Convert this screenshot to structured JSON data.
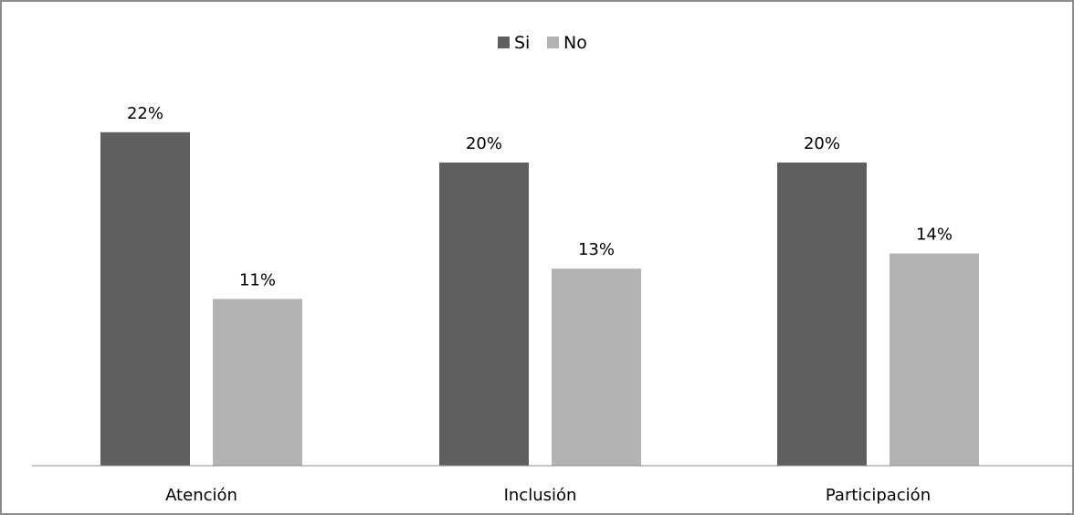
{
  "chart_data": {
    "type": "bar",
    "title": "",
    "xlabel": "",
    "ylabel": "",
    "ylim": [
      0,
      24
    ],
    "grid": false,
    "legend_position": "top-center",
    "categories": [
      "Atención",
      "Inclusión",
      "Participación"
    ],
    "series": [
      {
        "name": "Si",
        "color": "#5f5f5f",
        "values": [
          22,
          20,
          20
        ],
        "labels": [
          "22%",
          "20%",
          "20%"
        ]
      },
      {
        "name": "No",
        "color": "#b3b3b3",
        "values": [
          11,
          13,
          14
        ],
        "labels": [
          "11%",
          "13%",
          "14%"
        ]
      }
    ]
  }
}
